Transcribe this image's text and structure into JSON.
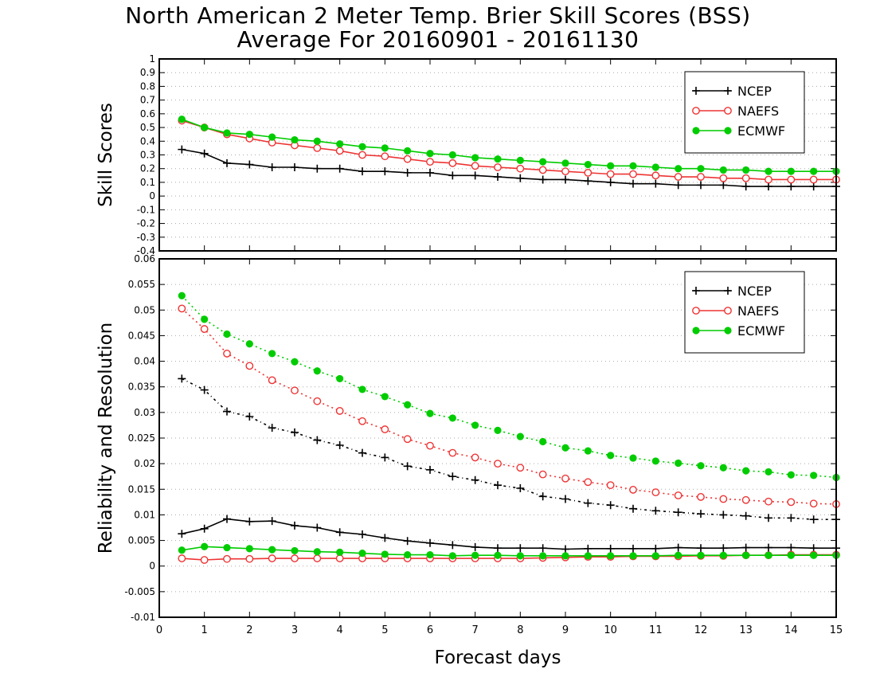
{
  "title": "North American 2 Meter Temp. Brier Skill Scores (BSS)",
  "subtitle": "Average For 20160901 - 20161130",
  "xlabel": "Forecast days",
  "x_ticks": [
    "0",
    "1",
    "2",
    "3",
    "4",
    "5",
    "6",
    "7",
    "8",
    "9",
    "10",
    "11",
    "12",
    "13",
    "14",
    "15"
  ],
  "colors": {
    "NCEP": "#000000",
    "NAEFS": "#ee3333",
    "ECMWF": "#00cc00"
  },
  "chart_data": [
    {
      "type": "line",
      "ylabel": "Skill Scores",
      "xlim": [
        0,
        15
      ],
      "ylim": [
        -0.4,
        1
      ],
      "y_ticks": [
        "1",
        "0.9",
        "0.8",
        "0.7",
        "0.6",
        "0.5",
        "0.4",
        "0.3",
        "0.2",
        "0.1",
        "0",
        "-0.1",
        "-0.2",
        "-0.3",
        "-0.4"
      ],
      "grid": true,
      "legend_position": "top-right",
      "x": [
        0.5,
        1,
        1.5,
        2,
        2.5,
        3,
        3.5,
        4,
        4.5,
        5,
        5.5,
        6,
        6.5,
        7,
        7.5,
        8,
        8.5,
        9,
        9.5,
        10,
        10.5,
        11,
        11.5,
        12,
        12.5,
        13,
        13.5,
        14,
        14.5,
        15
      ],
      "series": [
        {
          "name": "NCEP",
          "marker": "plus",
          "values": [
            0.34,
            0.31,
            0.24,
            0.23,
            0.21,
            0.21,
            0.2,
            0.2,
            0.18,
            0.18,
            0.17,
            0.17,
            0.15,
            0.15,
            0.14,
            0.13,
            0.12,
            0.12,
            0.11,
            0.1,
            0.09,
            0.09,
            0.08,
            0.08,
            0.08,
            0.07,
            0.07,
            0.07,
            0.07,
            0.07
          ]
        },
        {
          "name": "NAEFS",
          "marker": "open-circle",
          "values": [
            0.55,
            0.5,
            0.45,
            0.42,
            0.39,
            0.37,
            0.35,
            0.33,
            0.3,
            0.29,
            0.27,
            0.25,
            0.24,
            0.22,
            0.21,
            0.2,
            0.19,
            0.18,
            0.17,
            0.16,
            0.16,
            0.15,
            0.14,
            0.14,
            0.13,
            0.13,
            0.12,
            0.12,
            0.12,
            0.12
          ]
        },
        {
          "name": "ECMWF",
          "marker": "filled-circle",
          "values": [
            0.56,
            0.5,
            0.46,
            0.45,
            0.43,
            0.41,
            0.4,
            0.38,
            0.36,
            0.35,
            0.33,
            0.31,
            0.3,
            0.28,
            0.27,
            0.26,
            0.25,
            0.24,
            0.23,
            0.22,
            0.22,
            0.21,
            0.2,
            0.2,
            0.19,
            0.19,
            0.18,
            0.18,
            0.18,
            0.18
          ]
        }
      ]
    },
    {
      "type": "line",
      "ylabel": "Reliability and Resolution",
      "xlim": [
        0,
        15
      ],
      "ylim": [
        -0.01,
        0.06
      ],
      "y_ticks": [
        "0.06",
        "0.055",
        "0.05",
        "0.045",
        "0.04",
        "0.035",
        "0.03",
        "0.025",
        "0.02",
        "0.015",
        "0.01",
        "0.005",
        "0",
        "-0.005",
        "-0.01"
      ],
      "grid": true,
      "legend_position": "top-right",
      "x": [
        0.5,
        1,
        1.5,
        2,
        2.5,
        3,
        3.5,
        4,
        4.5,
        5,
        5.5,
        6,
        6.5,
        7,
        7.5,
        8,
        8.5,
        9,
        9.5,
        10,
        10.5,
        11,
        11.5,
        12,
        12.5,
        13,
        13.5,
        14,
        14.5,
        15
      ],
      "series": [
        {
          "name": "NCEP",
          "line": "dotted",
          "marker": "plus",
          "values": [
            0.0366,
            0.0344,
            0.0302,
            0.0292,
            0.027,
            0.0261,
            0.0246,
            0.0236,
            0.0221,
            0.0212,
            0.0195,
            0.0188,
            0.0175,
            0.0168,
            0.0158,
            0.0152,
            0.0136,
            0.0131,
            0.0123,
            0.0119,
            0.0112,
            0.0108,
            0.0105,
            0.0102,
            0.01,
            0.0098,
            0.0094,
            0.0094,
            0.0091,
            0.0091
          ]
        },
        {
          "name": "NAEFS",
          "line": "dotted",
          "marker": "open-circle",
          "values": [
            0.0503,
            0.0463,
            0.0415,
            0.0391,
            0.0363,
            0.0343,
            0.0322,
            0.0303,
            0.0283,
            0.0267,
            0.0248,
            0.0235,
            0.0221,
            0.0212,
            0.02,
            0.0192,
            0.0179,
            0.0171,
            0.0164,
            0.0158,
            0.0149,
            0.0144,
            0.0138,
            0.0135,
            0.0131,
            0.0129,
            0.0126,
            0.0125,
            0.0122,
            0.0121
          ]
        },
        {
          "name": "ECMWF",
          "line": "dotted",
          "marker": "filled-circle",
          "values": [
            0.0528,
            0.0482,
            0.0453,
            0.0434,
            0.0415,
            0.0399,
            0.0381,
            0.0366,
            0.0345,
            0.0331,
            0.0315,
            0.0298,
            0.0289,
            0.0275,
            0.0265,
            0.0253,
            0.0243,
            0.0231,
            0.0225,
            0.0216,
            0.0211,
            0.0205,
            0.0201,
            0.0196,
            0.0192,
            0.0186,
            0.0184,
            0.0178,
            0.0177,
            0.0173
          ]
        },
        {
          "name": "NCEP",
          "line": "solid",
          "marker": "plus",
          "values": [
            0.0063,
            0.0073,
            0.0092,
            0.0087,
            0.0088,
            0.0079,
            0.0075,
            0.0066,
            0.0062,
            0.0055,
            0.0049,
            0.0045,
            0.0041,
            0.0037,
            0.0035,
            0.0035,
            0.0035,
            0.0033,
            0.0034,
            0.0034,
            0.0034,
            0.0034,
            0.0036,
            0.0035,
            0.0035,
            0.0036,
            0.0036,
            0.0036,
            0.0035,
            0.0035
          ]
        },
        {
          "name": "NAEFS",
          "line": "solid",
          "marker": "open-circle",
          "values": [
            0.0015,
            0.0012,
            0.0014,
            0.0014,
            0.0015,
            0.0015,
            0.0015,
            0.0015,
            0.0015,
            0.0015,
            0.0015,
            0.0015,
            0.0015,
            0.0015,
            0.0015,
            0.0015,
            0.0016,
            0.0017,
            0.0018,
            0.0018,
            0.0019,
            0.0019,
            0.0019,
            0.002,
            0.002,
            0.0021,
            0.0021,
            0.0022,
            0.0022,
            0.0022
          ]
        },
        {
          "name": "ECMWF",
          "line": "solid",
          "marker": "filled-circle",
          "values": [
            0.0031,
            0.0038,
            0.0036,
            0.0034,
            0.0032,
            0.003,
            0.0028,
            0.0027,
            0.0025,
            0.0023,
            0.0022,
            0.0022,
            0.002,
            0.0021,
            0.0021,
            0.002,
            0.002,
            0.002,
            0.002,
            0.002,
            0.002,
            0.002,
            0.0021,
            0.0021,
            0.0021,
            0.0021,
            0.0021,
            0.0021,
            0.0021,
            0.0021
          ]
        }
      ]
    }
  ]
}
